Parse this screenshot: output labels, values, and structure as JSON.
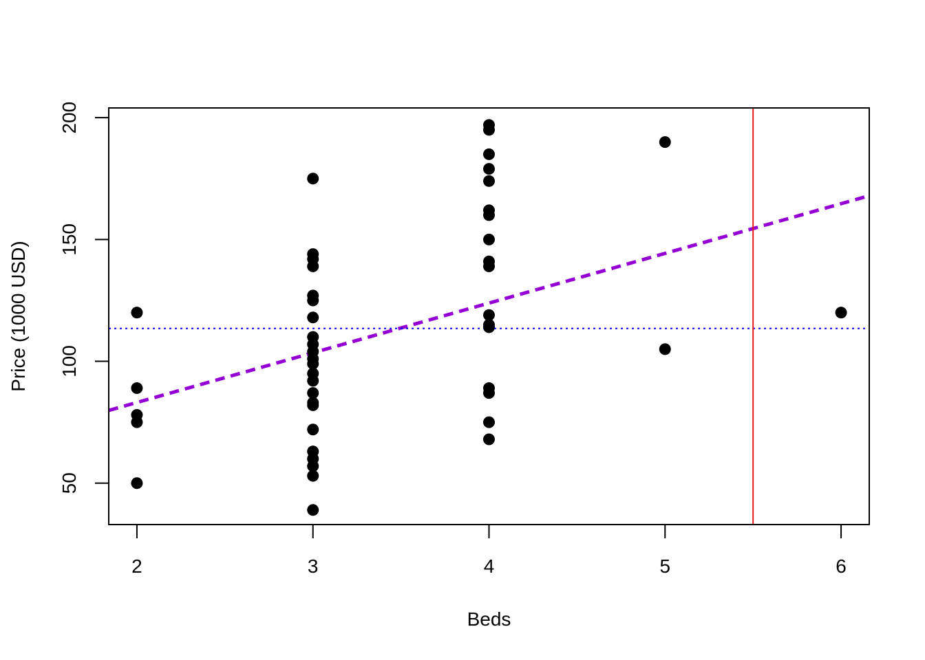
{
  "chart_data": {
    "type": "scatter",
    "xlabel": "Beds",
    "ylabel": "Price (1000 USD)",
    "xlim": [
      1.84,
      6.16
    ],
    "ylim": [
      33,
      204
    ],
    "xticks": [
      2,
      3,
      4,
      5,
      6
    ],
    "yticks": [
      50,
      100,
      150,
      200
    ],
    "x_tick_labels": [
      "2",
      "3",
      "4",
      "5",
      "6"
    ],
    "y_tick_labels": [
      "50",
      "100",
      "150",
      "200"
    ],
    "grid": false,
    "series": [
      {
        "color": "#000000",
        "marker": "filled-circle",
        "points": [
          [
            2,
            120
          ],
          [
            2,
            89
          ],
          [
            2,
            78
          ],
          [
            2,
            75
          ],
          [
            2,
            50
          ],
          [
            3,
            175
          ],
          [
            3,
            144
          ],
          [
            3,
            142
          ],
          [
            3,
            139
          ],
          [
            3,
            127
          ],
          [
            3,
            125
          ],
          [
            3,
            118
          ],
          [
            3,
            110
          ],
          [
            3,
            107
          ],
          [
            3,
            104
          ],
          [
            3,
            101
          ],
          [
            3,
            99
          ],
          [
            3,
            95
          ],
          [
            3,
            92
          ],
          [
            3,
            87
          ],
          [
            3,
            83
          ],
          [
            3,
            82
          ],
          [
            3,
            72
          ],
          [
            3,
            63
          ],
          [
            3,
            60
          ],
          [
            3,
            57
          ],
          [
            3,
            53
          ],
          [
            3,
            39
          ],
          [
            4,
            197
          ],
          [
            4,
            195
          ],
          [
            4,
            185
          ],
          [
            4,
            179
          ],
          [
            4,
            174
          ],
          [
            4,
            162
          ],
          [
            4,
            160
          ],
          [
            4,
            150
          ],
          [
            4,
            141
          ],
          [
            4,
            139
          ],
          [
            4,
            119
          ],
          [
            4,
            115
          ],
          [
            4,
            114
          ],
          [
            4,
            89
          ],
          [
            4,
            87
          ],
          [
            4,
            75
          ],
          [
            4,
            68
          ],
          [
            5,
            190
          ],
          [
            5,
            105
          ],
          [
            6,
            120
          ]
        ]
      }
    ],
    "lines": [
      {
        "kind": "regression",
        "intercept": 42.3,
        "slope": 20.4,
        "color": "#9400D3",
        "style": "dashed"
      },
      {
        "kind": "horizontal",
        "y": 113.5,
        "color": "#0000FF",
        "style": "dotted"
      },
      {
        "kind": "vertical",
        "x": 5.5,
        "color": "#E31A1C",
        "style": "solid"
      }
    ]
  }
}
